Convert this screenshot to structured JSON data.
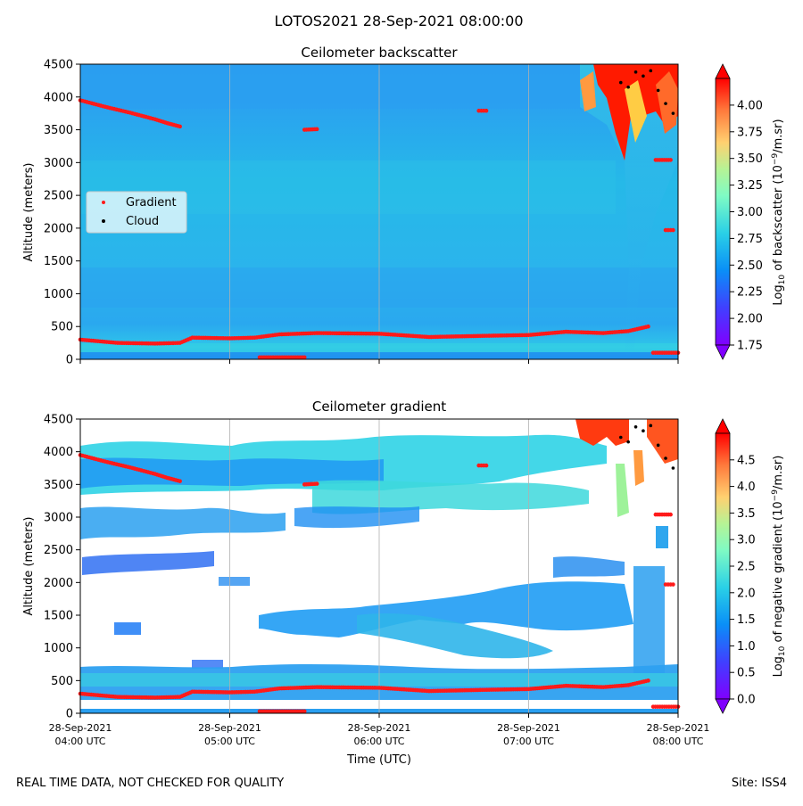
{
  "header": {
    "title": "LOTOS2021 28-Sep-2021 08:00:00"
  },
  "footer": {
    "left": "REAL TIME DATA, NOT CHECKED FOR QUALITY",
    "right": "Site: ISS4"
  },
  "colors": {
    "gradient_marker": "#ff1a1a",
    "cloud_marker": "#000000",
    "background_field": "#2fa8f0",
    "grid": "#b0b0b0"
  },
  "chart_data": [
    {
      "type": "heatmap",
      "title": "Ceilometer backscatter",
      "ylabel": "Altitude (meters)",
      "xlabel": "",
      "x_range_utc": [
        "04:00",
        "08:00"
      ],
      "ylim": [
        0,
        4500
      ],
      "yticks": [
        0,
        500,
        1000,
        1500,
        2000,
        2500,
        3000,
        3500,
        4000,
        4500
      ],
      "grid": "vertical at hour ticks",
      "colorbar": {
        "label": "Log10 of backscatter (10^-9/m.sr)",
        "range": [
          1.75,
          4.25
        ],
        "ticks": [
          "1.75",
          "2.00",
          "2.25",
          "2.50",
          "2.75",
          "3.00",
          "3.25",
          "3.50",
          "3.75",
          "4.00"
        ],
        "colormap": "rainbow",
        "extend": "both"
      },
      "legend": {
        "placement": "center-left",
        "entries": [
          "Gradient",
          "Cloud"
        ]
      },
      "series": [
        {
          "name": "Gradient",
          "x": [
            "04:00",
            "04:15",
            "04:30",
            "04:40",
            "04:45",
            "05:00",
            "05:10",
            "05:20",
            "05:35",
            "06:00",
            "06:20",
            "06:45",
            "07:00",
            "07:15",
            "07:30",
            "07:40",
            "07:48"
          ],
          "y": [
            300,
            250,
            240,
            250,
            330,
            320,
            330,
            380,
            400,
            390,
            340,
            360,
            370,
            420,
            400,
            430,
            500
          ]
        },
        {
          "name": "Gradient",
          "x": [
            "04:00",
            "04:10",
            "04:20",
            "04:30",
            "04:35",
            "04:40"
          ],
          "y": [
            3950,
            3850,
            3760,
            3660,
            3600,
            3550
          ]
        },
        {
          "name": "Gradient",
          "x": [
            "05:12",
            "05:30"
          ],
          "y": [
            30,
            30
          ]
        },
        {
          "name": "Gradient",
          "x": [
            "05:30",
            "05:35"
          ],
          "y": [
            3500,
            3510
          ]
        },
        {
          "name": "Gradient",
          "x": [
            "06:40",
            "06:43"
          ],
          "y": [
            3790,
            3790
          ]
        },
        {
          "name": "Gradient",
          "x": [
            "07:50",
            "08:00"
          ],
          "y": [
            100,
            100
          ]
        },
        {
          "name": "Gradient",
          "x": [
            "07:51",
            "07:57"
          ],
          "y": [
            3040,
            3040
          ]
        },
        {
          "name": "Gradient",
          "x": [
            "07:55",
            "07:58"
          ],
          "y": [
            1970,
            1970
          ]
        },
        {
          "name": "Cloud",
          "x": [
            "07:37",
            "07:40",
            "07:43",
            "07:46",
            "07:49",
            "07:52",
            "07:55",
            "07:58"
          ],
          "y": [
            4220,
            4150,
            4380,
            4320,
            4400,
            4100,
            3900,
            3750
          ]
        }
      ]
    },
    {
      "type": "heatmap",
      "title": "Ceilometer gradient",
      "ylabel": "Altitude (meters)",
      "xlabel": "Time (UTC)",
      "x_range_utc": [
        "04:00",
        "08:00"
      ],
      "xticks": [
        [
          "28-Sep-2021",
          "04:00 UTC"
        ],
        [
          "28-Sep-2021",
          "05:00 UTC"
        ],
        [
          "28-Sep-2021",
          "06:00 UTC"
        ],
        [
          "28-Sep-2021",
          "07:00 UTC"
        ],
        [
          "28-Sep-2021",
          "08:00 UTC"
        ]
      ],
      "ylim": [
        0,
        4500
      ],
      "yticks": [
        0,
        500,
        1000,
        1500,
        2000,
        2500,
        3000,
        3500,
        4000,
        4500
      ],
      "grid": "vertical at hour ticks",
      "colorbar": {
        "label": "Log10 of negative gradient (10^-9/m.sr)",
        "range": [
          0,
          5
        ],
        "ticks": [
          "0.0",
          "0.5",
          "1.0",
          "1.5",
          "2.0",
          "2.5",
          "3.0",
          "3.5",
          "4.0",
          "4.5"
        ],
        "colormap": "rainbow",
        "extend": "both"
      },
      "series": [
        {
          "name": "Gradient",
          "x": [
            "04:00",
            "04:15",
            "04:30",
            "04:40",
            "04:45",
            "05:00",
            "05:10",
            "05:20",
            "05:35",
            "06:00",
            "06:20",
            "06:45",
            "07:00",
            "07:15",
            "07:30",
            "07:40",
            "07:48"
          ],
          "y": [
            300,
            250,
            240,
            250,
            330,
            320,
            330,
            380,
            400,
            390,
            340,
            360,
            370,
            420,
            400,
            430,
            500
          ]
        },
        {
          "name": "Gradient",
          "x": [
            "04:00",
            "04:10",
            "04:20",
            "04:30",
            "04:35",
            "04:40"
          ],
          "y": [
            3950,
            3850,
            3760,
            3660,
            3600,
            3550
          ]
        },
        {
          "name": "Gradient",
          "x": [
            "05:12",
            "05:30"
          ],
          "y": [
            30,
            30
          ]
        },
        {
          "name": "Gradient",
          "x": [
            "05:30",
            "05:35"
          ],
          "y": [
            3500,
            3510
          ]
        },
        {
          "name": "Gradient",
          "x": [
            "06:40",
            "06:43"
          ],
          "y": [
            3790,
            3790
          ]
        },
        {
          "name": "Gradient",
          "x": [
            "07:50",
            "08:00"
          ],
          "y": [
            100,
            100
          ]
        },
        {
          "name": "Gradient",
          "x": [
            "07:51",
            "07:57"
          ],
          "y": [
            3040,
            3040
          ]
        },
        {
          "name": "Gradient",
          "x": [
            "07:55",
            "07:58"
          ],
          "y": [
            1970,
            1970
          ]
        },
        {
          "name": "Cloud",
          "x": [
            "07:37",
            "07:40",
            "07:43",
            "07:46",
            "07:49",
            "07:52",
            "07:55",
            "07:58"
          ],
          "y": [
            4220,
            4150,
            4380,
            4320,
            4400,
            4100,
            3900,
            3750
          ]
        }
      ]
    }
  ]
}
